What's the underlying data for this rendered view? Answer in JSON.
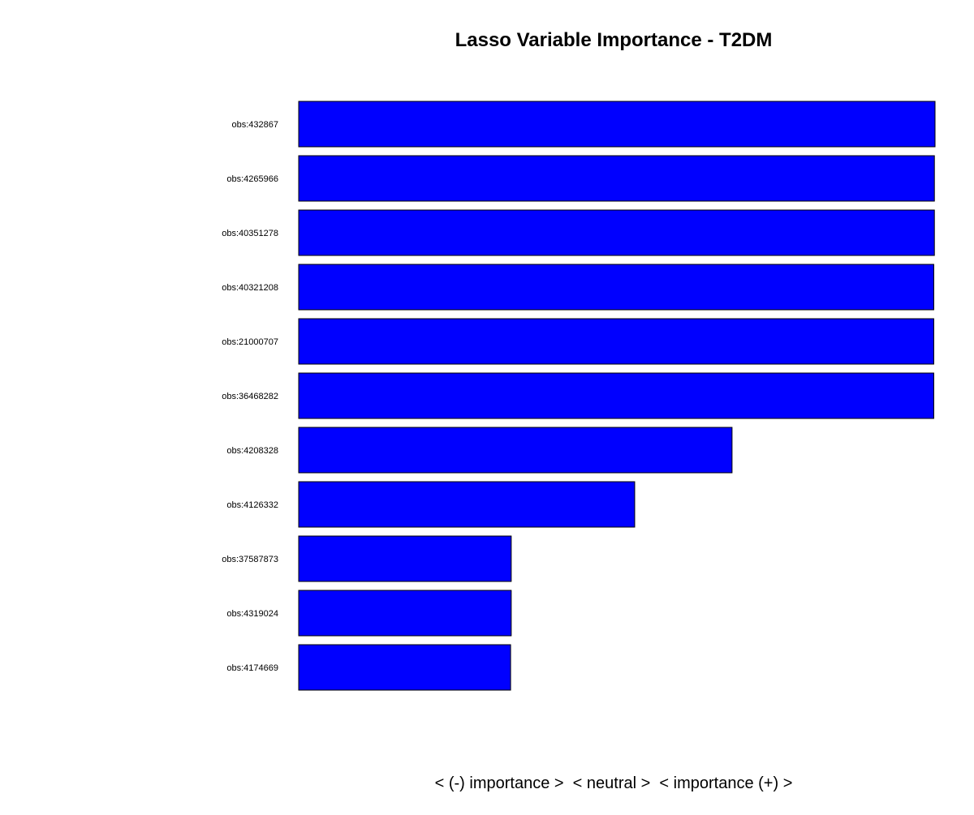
{
  "chart_data": {
    "type": "bar",
    "orientation": "horizontal",
    "title": "Lasso Variable Importance - T2DM",
    "xlabel": "< (-) importance >  < neutral >  < importance (+) >",
    "ylabel": "",
    "categories": [
      "obs:432867",
      "obs:4265966",
      "obs:40351278",
      "obs:40321208",
      "obs:21000707",
      "obs:36468282",
      "obs:4208328",
      "obs:4126332",
      "obs:37587873",
      "obs:4319024",
      "obs:4174669"
    ],
    "values": [
      1.0,
      0.999,
      0.999,
      0.998,
      0.998,
      0.998,
      0.681,
      0.528,
      0.334,
      0.334,
      0.333
    ],
    "xlim": [
      0,
      1
    ],
    "grid": false,
    "legend": "none",
    "bar_color": "#0000FF",
    "edge_color": "#000000"
  }
}
